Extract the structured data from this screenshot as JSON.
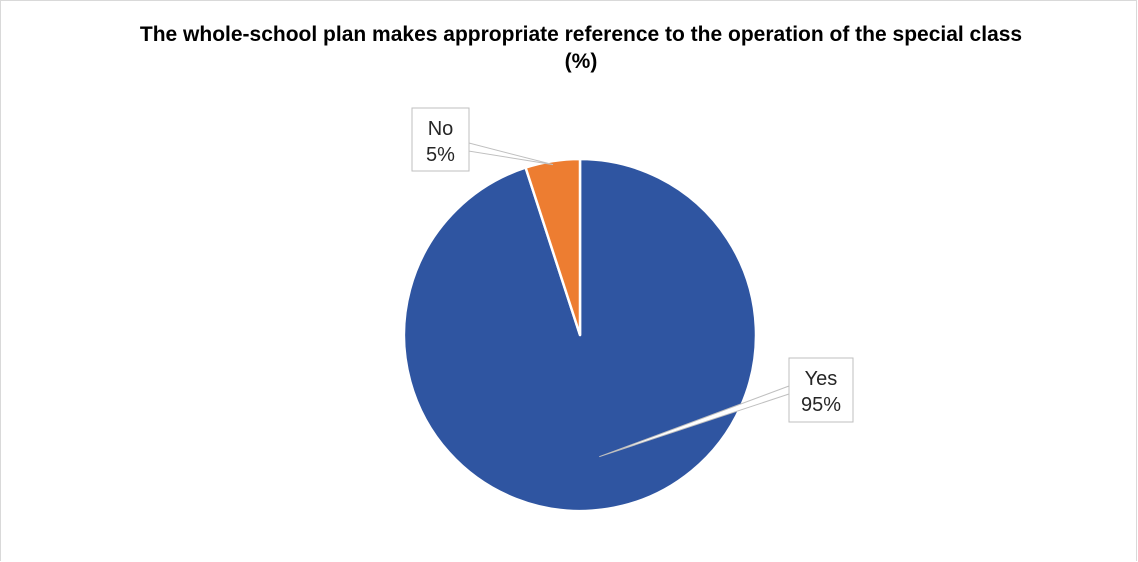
{
  "chart_data": {
    "type": "pie",
    "title": "The whole-school plan makes appropriate reference to the operation of the special class (%)",
    "categories": [
      "Yes",
      "No"
    ],
    "values": [
      95,
      5
    ],
    "colors": [
      "#2F55A1",
      "#ED7D31"
    ],
    "data_labels": [
      {
        "category": "Yes",
        "percent": "95%"
      },
      {
        "category": "No",
        "percent": "5%"
      }
    ],
    "legend": "none"
  }
}
